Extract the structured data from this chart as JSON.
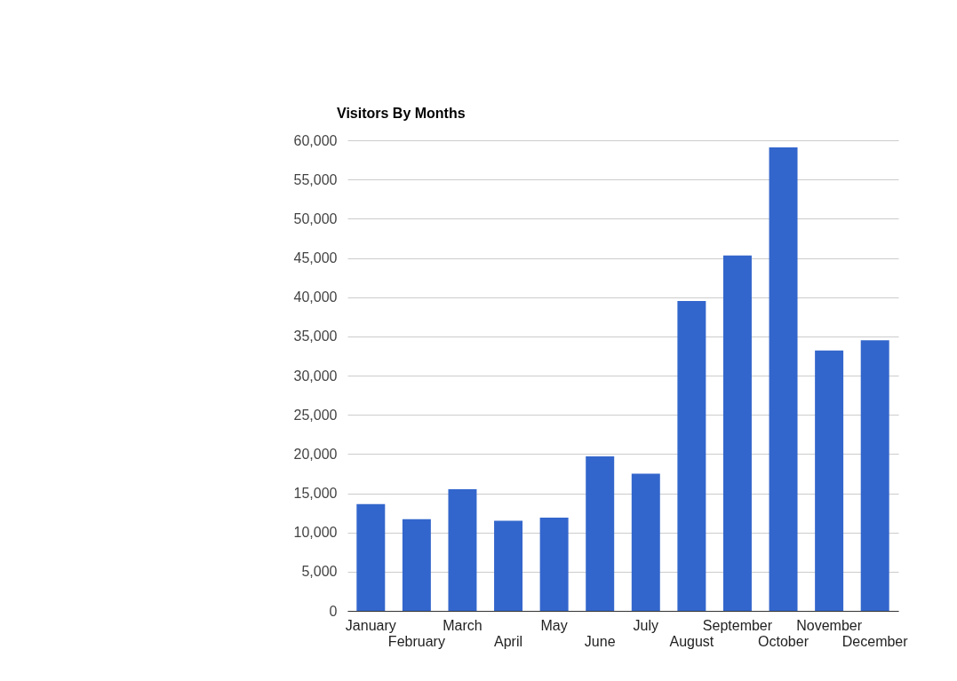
{
  "chart_data": {
    "type": "bar",
    "title": "Visitors By Months",
    "categories": [
      "January",
      "February",
      "March",
      "April",
      "May",
      "June",
      "July",
      "August",
      "September",
      "October",
      "November",
      "December"
    ],
    "values": [
      13600,
      11700,
      15500,
      11500,
      11900,
      19700,
      17500,
      39500,
      45300,
      59100,
      33200,
      34500
    ],
    "color": "#3366cc",
    "ylim": [
      0,
      60000
    ],
    "yticks": [
      {
        "value": 0,
        "label": "0"
      },
      {
        "value": 5000,
        "label": "5,000"
      },
      {
        "value": 10000,
        "label": "10,000"
      },
      {
        "value": 15000,
        "label": "15,000"
      },
      {
        "value": 20000,
        "label": "20,000"
      },
      {
        "value": 25000,
        "label": "25,000"
      },
      {
        "value": 30000,
        "label": "30,000"
      },
      {
        "value": 35000,
        "label": "35,000"
      },
      {
        "value": 40000,
        "label": "40,000"
      },
      {
        "value": 45000,
        "label": "45,000"
      },
      {
        "value": 50000,
        "label": "50,000"
      },
      {
        "value": 55000,
        "label": "55,000"
      },
      {
        "value": 60000,
        "label": "60,000"
      }
    ],
    "grid": "y"
  }
}
